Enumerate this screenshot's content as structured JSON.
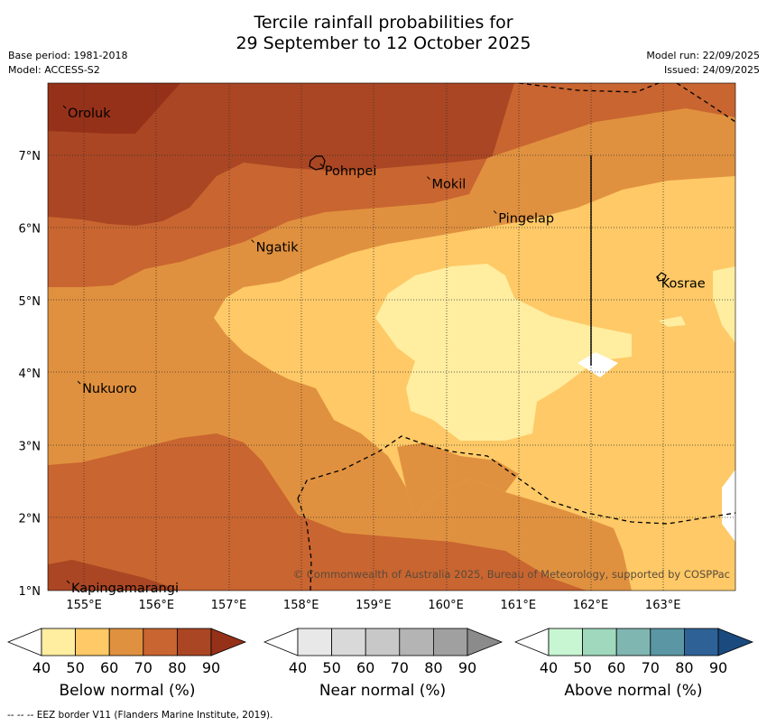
{
  "header": {
    "title_line1": "Tercile rainfall probabilities for",
    "title_line2": "29 September to 12 October 2025",
    "base_period": "Base period: 1981-2018",
    "model": "Model: ACCESS-S2",
    "model_run": "Model run: 22/09/2025",
    "issued": "Issued: 24/09/2025"
  },
  "map": {
    "lat_labels": [
      "7°N",
      "6°N",
      "5°N",
      "4°N",
      "3°N",
      "2°N",
      "1°N"
    ],
    "lon_labels": [
      "155°E",
      "156°E",
      "157°E",
      "158°E",
      "159°E",
      "160°E",
      "161°E",
      "162°E",
      "163°E"
    ],
    "places": [
      {
        "name": "Oroluk",
        "lon": 154.75,
        "lat": 7.65
      },
      {
        "name": "Pohnpei",
        "lon": 158.3,
        "lat": 6.85
      },
      {
        "name": "Mokil",
        "lon": 159.78,
        "lat": 6.67
      },
      {
        "name": "Pingelap",
        "lon": 160.7,
        "lat": 6.2
      },
      {
        "name": "Ngatik",
        "lon": 157.35,
        "lat": 5.8
      },
      {
        "name": "Kosrae",
        "lon": 162.95,
        "lat": 5.3
      },
      {
        "name": "Nukuoro",
        "lon": 154.95,
        "lat": 3.85
      },
      {
        "name": "Kapingamarangi",
        "lon": 154.8,
        "lat": 1.1
      }
    ],
    "copyright": "© Commonwealth of Australia 2025, Bureau of Meteorology, supported by COSPPac"
  },
  "colorbars": {
    "ticks": [
      "40",
      "50",
      "60",
      "70",
      "80",
      "90"
    ],
    "below": {
      "label": "Below normal (%)",
      "colors": [
        "#ffffff",
        "#ffeda0",
        "#fec966",
        "#e0913f",
        "#c96530",
        "#aa4623",
        "#963119"
      ]
    },
    "near": {
      "label": "Near normal (%)",
      "colors": [
        "#ffffff",
        "#e8e8e8",
        "#d9d9d9",
        "#c8c8c8",
        "#b4b4b4",
        "#a0a0a0",
        "#8b8b8b"
      ]
    },
    "above": {
      "label": "Above normal (%)",
      "colors": [
        "#ffffff",
        "#c8f6d2",
        "#9fd8bc",
        "#80b6b1",
        "#5a96a3",
        "#2e6296",
        "#1a4a7e"
      ]
    }
  },
  "footnote": "--  --  -- EEZ border V11 (Flanders Marine Institute, 2019)."
}
